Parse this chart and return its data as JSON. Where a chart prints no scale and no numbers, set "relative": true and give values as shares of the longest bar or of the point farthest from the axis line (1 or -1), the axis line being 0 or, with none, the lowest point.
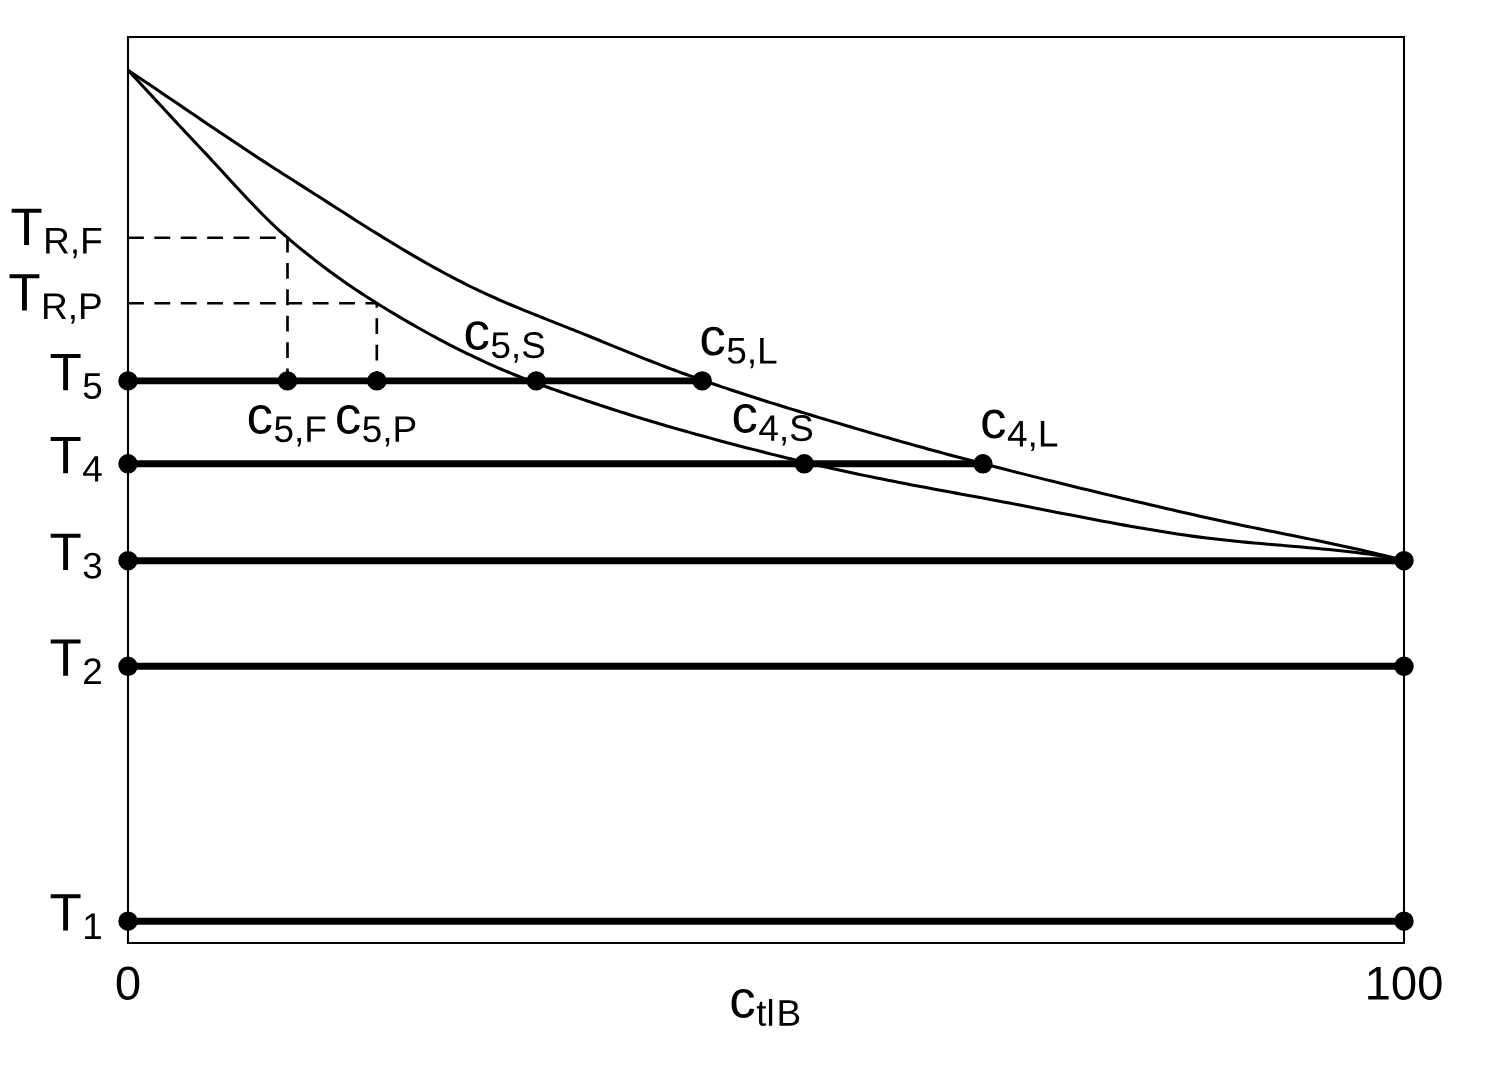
{
  "chart_data": {
    "type": "line",
    "relative": true,
    "xlabel": "c$_{tl}$$_{B}$",
    "xlim": [
      0,
      100
    ],
    "xticks": [
      0,
      100
    ],
    "series": [
      {
        "x": [
          0,
          5.6,
          12.5,
          19.5,
          29,
          36,
          44,
          56,
          68,
          84,
          98.4,
          100
        ],
        "values": [
          1,
          0.912,
          0.808,
          0.733,
          0.659,
          0.621,
          0.585,
          0.541,
          0.507,
          0.465,
          0.443,
          0.438
        ],
        "color": "#000000"
      },
      {
        "x": [
          0,
          12.6,
          27,
          36,
          44,
          56,
          66,
          84,
          99,
          100
        ],
        "values": [
          1,
          0.877,
          0.751,
          0.696,
          0.65,
          0.594,
          0.553,
          0.489,
          0.442,
          0.438
        ],
        "color": "#000000"
      },
      {
        "x": [
          0,
          12.5,
          12.5
        ],
        "values": [
          0.808,
          0.808,
          0.644
        ],
        "color": "#000000",
        "line_style": "dashed"
      },
      {
        "x": [
          0,
          19.5,
          19.5
        ],
        "values": [
          0.733,
          0.733,
          0.644
        ],
        "color": "#000000",
        "line_style": "dashed"
      },
      {
        "x": [
          0,
          12.5,
          19.5,
          32,
          45
        ],
        "values": [
          0.644,
          0.644,
          0.644,
          0.644,
          0.644
        ],
        "color": "#000000",
        "marker": "circle"
      },
      {
        "x": [
          0,
          53,
          67
        ],
        "values": [
          0.549,
          0.549,
          0.549
        ],
        "color": "#000000",
        "marker": "circle"
      },
      {
        "x": [
          0,
          100
        ],
        "values": [
          0.438,
          0.438
        ],
        "color": "#000000",
        "marker": "circle"
      },
      {
        "x": [
          0,
          100
        ],
        "values": [
          0.317,
          0.317
        ],
        "color": "#000000",
        "marker": "circle"
      },
      {
        "x": [
          0,
          100
        ],
        "values": [
          0.025,
          0.025
        ],
        "color": "#000000",
        "marker": "circle"
      }
    ],
    "annotations": [
      {
        "text": "T$_{R,F}$",
        "x": 0,
        "y": 0.808
      },
      {
        "text": "T$_{R,P}$",
        "x": 0,
        "y": 0.733
      },
      {
        "text": "T$_{5}$",
        "x": 0,
        "y": 0.644
      },
      {
        "text": "T$_{4}$",
        "x": 0,
        "y": 0.549
      },
      {
        "text": "T$_{3}$",
        "x": 0,
        "y": 0.438
      },
      {
        "text": "T$_{2}$",
        "x": 0,
        "y": 0.317
      },
      {
        "text": "T$_{1}$",
        "x": 0,
        "y": 0.025
      },
      {
        "text": "c$_{5,F}$",
        "x": 12.5,
        "y": 0.644
      },
      {
        "text": "c$_{5,P}$",
        "x": 19.5,
        "y": 0.644
      },
      {
        "text": "c$_{5,S}$",
        "x": 32,
        "y": 0.644
      },
      {
        "text": "c$_{5,L}$",
        "x": 45,
        "y": 0.644
      },
      {
        "text": "c$_{4,S}$",
        "x": 53,
        "y": 0.549
      },
      {
        "text": "c$_{4,L}$",
        "x": 67,
        "y": 0.549
      }
    ]
  }
}
